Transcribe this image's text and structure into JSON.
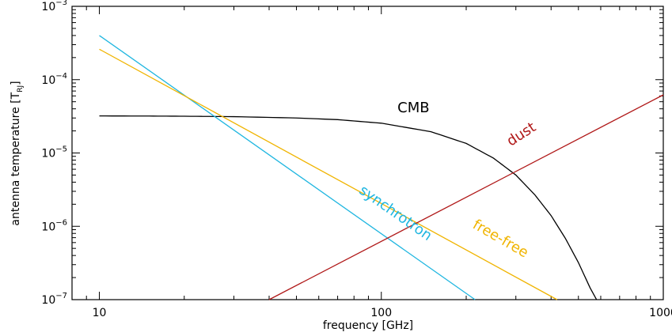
{
  "chart_data": {
    "type": "line",
    "title": "",
    "xlabel": "frequency [GHz]",
    "ylabel": "antenna temperature [T_RJ]",
    "ylabel_main": "antenna temperature [T",
    "ylabel_sub": "RJ",
    "ylabel_close": "]",
    "x_scale": "log",
    "y_scale": "log",
    "xlim": [
      8,
      1000
    ],
    "ylim": [
      1e-07,
      0.001
    ],
    "grid": false,
    "legend": "none",
    "x_ticks": [
      {
        "value": 10,
        "label": "10"
      },
      {
        "value": 100,
        "label": "100"
      },
      {
        "value": 1000,
        "label": "1000"
      }
    ],
    "y_ticks": [
      {
        "value": 1e-07,
        "base": "10",
        "exp": "−7"
      },
      {
        "value": 1e-06,
        "base": "10",
        "exp": "−6"
      },
      {
        "value": 1e-05,
        "base": "10",
        "exp": "−5"
      },
      {
        "value": 0.0001,
        "base": "10",
        "exp": "−4"
      },
      {
        "value": 0.001,
        "base": "10",
        "exp": "−3"
      }
    ],
    "series": [
      {
        "name": "CMB",
        "color": "#000000",
        "x": [
          10,
          15,
          20,
          30,
          50,
          70,
          100,
          150,
          200,
          250,
          300,
          350,
          400,
          450,
          500,
          550,
          580
        ],
        "y": [
          3.2e-05,
          3.19e-05,
          3.17e-05,
          3.13e-05,
          3e-05,
          2.85e-05,
          2.55e-05,
          1.95e-05,
          1.35e-05,
          8.5e-06,
          5e-06,
          2.7e-06,
          1.4e-06,
          6.8e-07,
          3.2e-07,
          1.45e-07,
          1e-07
        ],
        "label": "CMB",
        "label_x": 130,
        "label_y": 3.6e-05,
        "label_rotate": 0
      },
      {
        "name": "synchrotron",
        "color": "#1fb6e0",
        "x": [
          10,
          215
        ],
        "y": [
          0.0004,
          1e-07
        ],
        "label": "synchrotron",
        "label_x": 110,
        "label_y": 1.35e-06,
        "label_rotate": 35
      },
      {
        "name": "free-free",
        "color": "#f0b400",
        "x": [
          10,
          420
        ],
        "y": [
          0.00026,
          1e-07
        ],
        "label": "free-free",
        "label_x": 260,
        "label_y": 6e-07,
        "label_rotate": 30
      },
      {
        "name": "dust",
        "color": "#b01818",
        "x": [
          40,
          1000
        ],
        "y": [
          1e-07,
          6.2e-05
        ],
        "label": "dust",
        "label_x": 320,
        "label_y": 1.6e-05,
        "label_rotate": -33
      }
    ]
  }
}
